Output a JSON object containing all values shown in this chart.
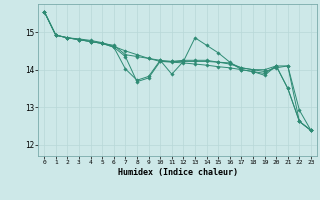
{
  "title": "",
  "xlabel": "Humidex (Indice chaleur)",
  "background_color": "#cde8e8",
  "grid_color": "#b8d8d8",
  "line_color": "#2e8b74",
  "xlim": [
    -0.5,
    23.5
  ],
  "ylim": [
    11.7,
    15.75
  ],
  "yticks": [
    12,
    13,
    14,
    15
  ],
  "xticks": [
    0,
    1,
    2,
    3,
    4,
    5,
    6,
    7,
    8,
    9,
    10,
    11,
    12,
    13,
    14,
    15,
    16,
    17,
    18,
    19,
    20,
    21,
    22,
    23
  ],
  "series": [
    [
      15.55,
      14.92,
      14.85,
      14.82,
      14.78,
      14.72,
      14.62,
      14.5,
      14.4,
      14.3,
      14.22,
      14.2,
      14.18,
      14.15,
      14.12,
      14.08,
      14.05,
      14.0,
      13.95,
      13.85,
      14.1,
      13.5,
      12.62,
      12.38
    ],
    [
      15.55,
      14.92,
      14.85,
      14.8,
      14.75,
      14.7,
      14.6,
      14.02,
      13.72,
      13.82,
      14.25,
      13.88,
      14.22,
      14.85,
      14.65,
      14.45,
      14.2,
      14.0,
      13.95,
      13.9,
      14.1,
      13.5,
      12.62,
      12.38
    ],
    [
      15.55,
      14.92,
      14.85,
      14.8,
      14.75,
      14.7,
      14.6,
      14.35,
      13.68,
      13.78,
      14.22,
      14.22,
      14.22,
      14.22,
      14.22,
      14.2,
      14.18,
      14.05,
      14.0,
      13.95,
      14.05,
      14.1,
      12.62,
      12.38
    ],
    [
      15.55,
      14.92,
      14.85,
      14.8,
      14.75,
      14.7,
      14.65,
      14.4,
      14.35,
      14.3,
      14.25,
      14.22,
      14.25,
      14.25,
      14.25,
      14.2,
      14.15,
      14.05,
      14.0,
      14.0,
      14.1,
      14.1,
      12.92,
      12.38
    ]
  ]
}
